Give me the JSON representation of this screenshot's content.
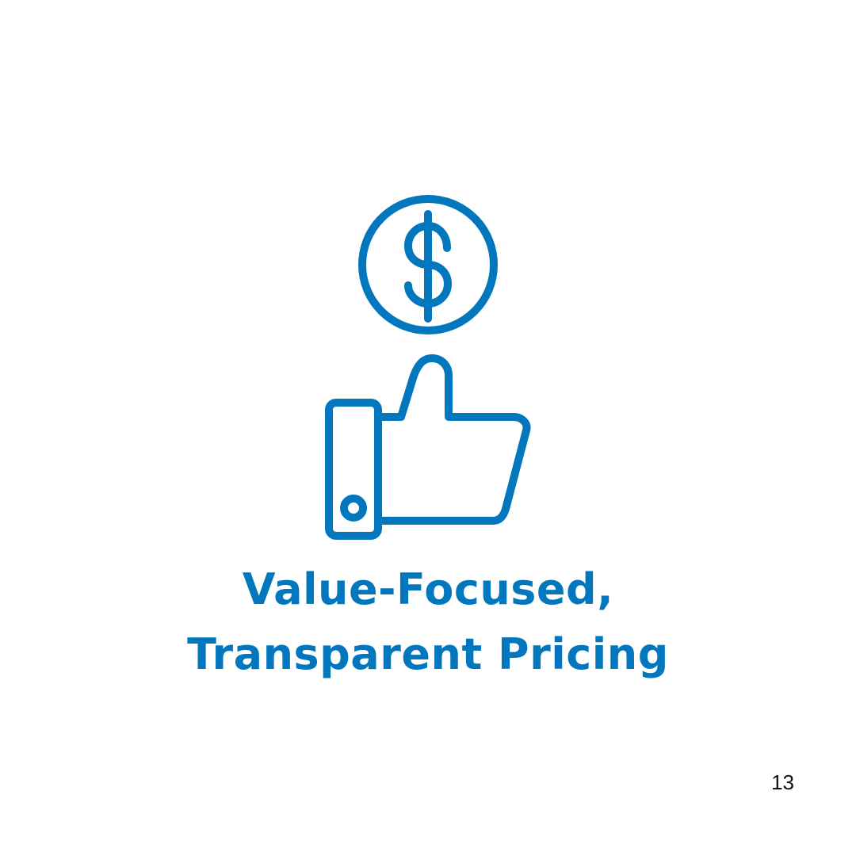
{
  "colors": {
    "accent": "#0277bd",
    "background": "#ffffff",
    "page_number": "#111111"
  },
  "icons": {
    "coin": "dollar-coin-icon",
    "hand": "thumbs-up-icon"
  },
  "heading": {
    "line1": "Value-Focused,",
    "line2": "Transparent Pricing"
  },
  "page_number": "13"
}
